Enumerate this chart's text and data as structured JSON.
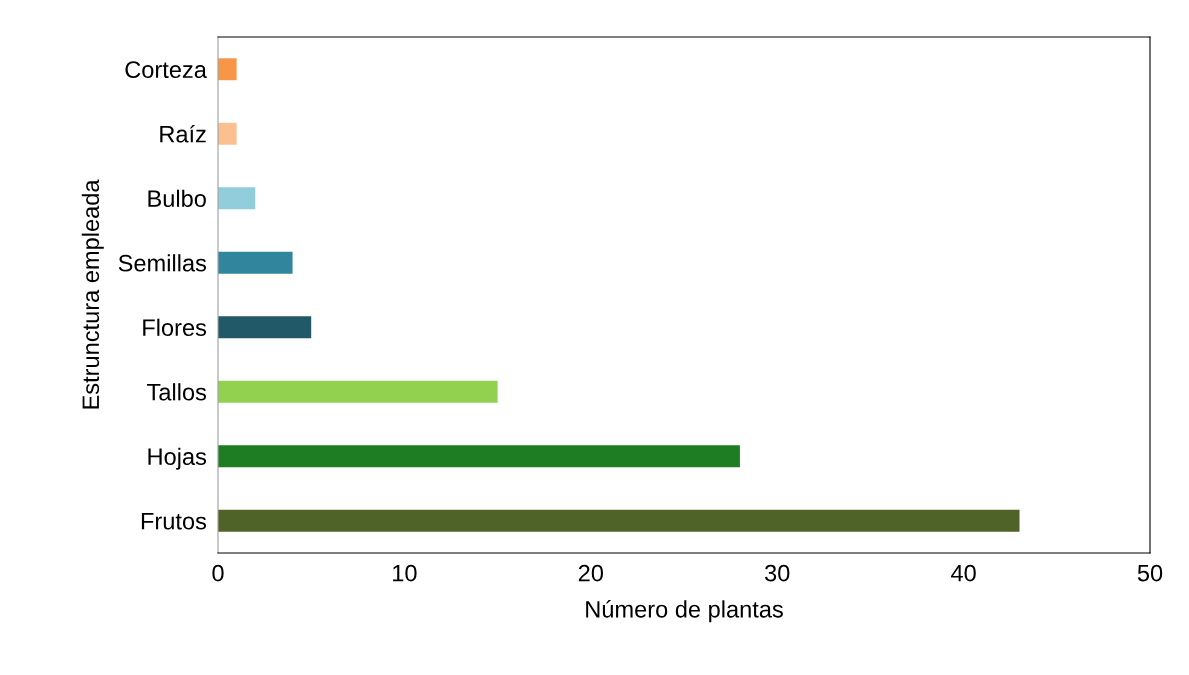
{
  "chart_data": {
    "type": "bar",
    "orientation": "horizontal",
    "xlabel": "Número de plantas",
    "ylabel": "Estrunctura empleada",
    "categories": [
      "Corteza",
      "Raíz",
      "Bulbo",
      "Semillas",
      "Flores",
      "Tallos",
      "Hojas",
      "Frutos"
    ],
    "values": [
      1,
      1,
      2,
      4,
      5,
      15,
      28,
      43
    ],
    "colors": [
      "#f79646",
      "#fac090",
      "#92cddc",
      "#31859c",
      "#215968",
      "#92d050",
      "#1e7d22",
      "#4f6228"
    ],
    "xlim": [
      0,
      50
    ],
    "xticks": [
      0,
      10,
      20,
      30,
      40,
      50
    ],
    "grid": false,
    "legend": false
  }
}
